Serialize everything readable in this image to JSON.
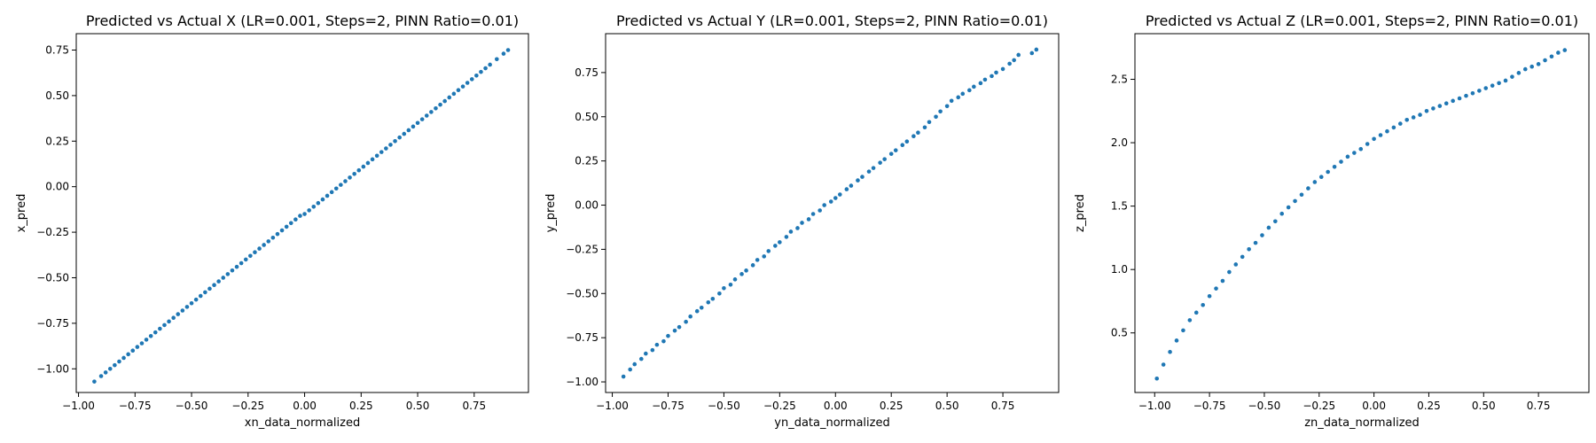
{
  "chart_data": [
    {
      "type": "scatter",
      "title": "Predicted vs Actual X (LR=0.001, Steps=2, PINN Ratio=0.01)",
      "xlabel": "xn_data_normalized",
      "ylabel": "x_pred",
      "xlim": [
        -1.01,
        0.99
      ],
      "ylim": [
        -1.13,
        0.84
      ],
      "xticks": [
        -1.0,
        -0.75,
        -0.5,
        -0.25,
        0.0,
        0.25,
        0.5,
        0.75
      ],
      "xtick_labels": [
        "−1.00",
        "−0.75",
        "−0.50",
        "−0.25",
        "0.00",
        "0.25",
        "0.50",
        "0.75"
      ],
      "yticks": [
        -1.0,
        -0.75,
        -0.5,
        -0.25,
        0.0,
        0.25,
        0.5,
        0.75
      ],
      "ytick_labels": [
        "−1.00",
        "−0.75",
        "−0.50",
        "−0.25",
        "0.00",
        "0.25",
        "0.50",
        "0.75"
      ],
      "color": "#1f77b4",
      "series": [
        {
          "x": [
            -0.93,
            -0.9,
            -0.88,
            -0.86,
            -0.84,
            -0.82,
            -0.8,
            -0.78,
            -0.76,
            -0.74,
            -0.72,
            -0.7,
            -0.68,
            -0.66,
            -0.64,
            -0.62,
            -0.6,
            -0.58,
            -0.56,
            -0.54,
            -0.52,
            -0.5,
            -0.48,
            -0.46,
            -0.44,
            -0.42,
            -0.4,
            -0.38,
            -0.36,
            -0.34,
            -0.32,
            -0.3,
            -0.28,
            -0.26,
            -0.24,
            -0.22,
            -0.2,
            -0.18,
            -0.16,
            -0.14,
            -0.12,
            -0.1,
            -0.08,
            -0.06,
            -0.04,
            -0.02,
            0.0,
            0.02,
            0.04,
            0.06,
            0.08,
            0.1,
            0.12,
            0.14,
            0.16,
            0.18,
            0.2,
            0.22,
            0.24,
            0.26,
            0.28,
            0.3,
            0.32,
            0.34,
            0.36,
            0.38,
            0.4,
            0.42,
            0.44,
            0.46,
            0.48,
            0.5,
            0.52,
            0.54,
            0.56,
            0.58,
            0.6,
            0.62,
            0.64,
            0.66,
            0.68,
            0.7,
            0.72,
            0.74,
            0.76,
            0.78,
            0.8,
            0.82,
            0.85,
            0.88,
            0.9
          ],
          "y": [
            -1.07,
            -1.04,
            -1.02,
            -1.0,
            -0.98,
            -0.96,
            -0.94,
            -0.92,
            -0.9,
            -0.88,
            -0.86,
            -0.84,
            -0.82,
            -0.8,
            -0.78,
            -0.76,
            -0.74,
            -0.72,
            -0.7,
            -0.68,
            -0.66,
            -0.64,
            -0.62,
            -0.6,
            -0.58,
            -0.56,
            -0.54,
            -0.52,
            -0.5,
            -0.48,
            -0.46,
            -0.44,
            -0.42,
            -0.4,
            -0.38,
            -0.36,
            -0.34,
            -0.32,
            -0.3,
            -0.28,
            -0.26,
            -0.24,
            -0.22,
            -0.2,
            -0.18,
            -0.16,
            -0.15,
            -0.13,
            -0.11,
            -0.09,
            -0.07,
            -0.05,
            -0.03,
            -0.01,
            0.01,
            0.03,
            0.05,
            0.07,
            0.09,
            0.11,
            0.13,
            0.15,
            0.17,
            0.19,
            0.21,
            0.23,
            0.25,
            0.27,
            0.29,
            0.31,
            0.33,
            0.35,
            0.37,
            0.39,
            0.41,
            0.43,
            0.45,
            0.47,
            0.49,
            0.51,
            0.53,
            0.55,
            0.57,
            0.59,
            0.61,
            0.63,
            0.65,
            0.67,
            0.7,
            0.73,
            0.75
          ]
        }
      ]
    },
    {
      "type": "scatter",
      "title": "Predicted vs Actual Y (LR=0.001, Steps=2, PINN Ratio=0.01)",
      "xlabel": "yn_data_normalized",
      "ylabel": "y_pred",
      "xlim": [
        -1.03,
        1.0
      ],
      "ylim": [
        -1.06,
        0.97
      ],
      "xticks": [
        -1.0,
        -0.75,
        -0.5,
        -0.25,
        0.0,
        0.25,
        0.5,
        0.75
      ],
      "xtick_labels": [
        "−1.00",
        "−0.75",
        "−0.50",
        "−0.25",
        "0.00",
        "0.25",
        "0.50",
        "0.75"
      ],
      "yticks": [
        -1.0,
        -0.75,
        -0.5,
        -0.25,
        0.0,
        0.25,
        0.5,
        0.75
      ],
      "ytick_labels": [
        "−1.00",
        "−0.75",
        "−0.50",
        "−0.25",
        "0.00",
        "0.25",
        "0.50",
        "0.75"
      ],
      "color": "#1f77b4",
      "series": [
        {
          "x": [
            -0.95,
            -0.92,
            -0.9,
            -0.87,
            -0.85,
            -0.82,
            -0.8,
            -0.77,
            -0.75,
            -0.72,
            -0.7,
            -0.67,
            -0.65,
            -0.62,
            -0.6,
            -0.57,
            -0.55,
            -0.52,
            -0.5,
            -0.47,
            -0.45,
            -0.42,
            -0.4,
            -0.37,
            -0.35,
            -0.32,
            -0.3,
            -0.27,
            -0.25,
            -0.22,
            -0.2,
            -0.17,
            -0.15,
            -0.12,
            -0.1,
            -0.07,
            -0.05,
            -0.02,
            0.0,
            0.02,
            0.05,
            0.07,
            0.1,
            0.12,
            0.15,
            0.17,
            0.2,
            0.22,
            0.25,
            0.27,
            0.3,
            0.32,
            0.35,
            0.37,
            0.4,
            0.42,
            0.45,
            0.47,
            0.5,
            0.52,
            0.55,
            0.57,
            0.6,
            0.62,
            0.65,
            0.67,
            0.7,
            0.72,
            0.75,
            0.78,
            0.8,
            0.82,
            0.88,
            0.9
          ],
          "y": [
            -0.97,
            -0.93,
            -0.9,
            -0.87,
            -0.84,
            -0.82,
            -0.79,
            -0.77,
            -0.74,
            -0.71,
            -0.69,
            -0.66,
            -0.63,
            -0.6,
            -0.58,
            -0.55,
            -0.53,
            -0.5,
            -0.47,
            -0.45,
            -0.42,
            -0.39,
            -0.37,
            -0.34,
            -0.31,
            -0.29,
            -0.26,
            -0.23,
            -0.21,
            -0.18,
            -0.15,
            -0.13,
            -0.1,
            -0.08,
            -0.05,
            -0.03,
            0.0,
            0.02,
            0.04,
            0.06,
            0.09,
            0.11,
            0.14,
            0.16,
            0.19,
            0.21,
            0.24,
            0.26,
            0.29,
            0.31,
            0.34,
            0.36,
            0.39,
            0.41,
            0.44,
            0.47,
            0.5,
            0.53,
            0.56,
            0.59,
            0.61,
            0.63,
            0.65,
            0.67,
            0.69,
            0.71,
            0.73,
            0.75,
            0.77,
            0.8,
            0.82,
            0.85,
            0.86,
            0.88
          ]
        }
      ]
    },
    {
      "type": "scatter",
      "title": "Predicted vs Actual Z (LR=0.001, Steps=2, PINN Ratio=0.01)",
      "xlabel": "zn_data_normalized",
      "ylabel": "z_pred",
      "xlim": [
        -1.09,
        0.98
      ],
      "ylim": [
        0.03,
        2.86
      ],
      "xticks": [
        -1.0,
        -0.75,
        -0.5,
        -0.25,
        0.0,
        0.25,
        0.5,
        0.75
      ],
      "xtick_labels": [
        "−1.00",
        "−0.75",
        "−0.50",
        "−0.25",
        "0.00",
        "0.25",
        "0.50",
        "0.75"
      ],
      "yticks": [
        0.5,
        1.0,
        1.5,
        2.0,
        2.5
      ],
      "ytick_labels": [
        "0.5",
        "1.0",
        "1.5",
        "2.0",
        "2.5"
      ],
      "color": "#1f77b4",
      "series": [
        {
          "x": [
            -0.99,
            -0.96,
            -0.93,
            -0.9,
            -0.87,
            -0.84,
            -0.81,
            -0.78,
            -0.75,
            -0.72,
            -0.69,
            -0.66,
            -0.63,
            -0.6,
            -0.57,
            -0.54,
            -0.51,
            -0.48,
            -0.45,
            -0.42,
            -0.39,
            -0.36,
            -0.33,
            -0.3,
            -0.27,
            -0.24,
            -0.21,
            -0.18,
            -0.15,
            -0.12,
            -0.09,
            -0.06,
            -0.03,
            0.0,
            0.03,
            0.06,
            0.09,
            0.12,
            0.15,
            0.18,
            0.21,
            0.24,
            0.27,
            0.3,
            0.33,
            0.36,
            0.39,
            0.42,
            0.45,
            0.48,
            0.51,
            0.54,
            0.57,
            0.6,
            0.63,
            0.66,
            0.69,
            0.72,
            0.75,
            0.78,
            0.81,
            0.84,
            0.87
          ],
          "y": [
            0.14,
            0.25,
            0.35,
            0.44,
            0.52,
            0.6,
            0.66,
            0.72,
            0.79,
            0.85,
            0.91,
            0.98,
            1.04,
            1.1,
            1.16,
            1.21,
            1.27,
            1.33,
            1.38,
            1.44,
            1.49,
            1.54,
            1.59,
            1.64,
            1.69,
            1.73,
            1.77,
            1.81,
            1.85,
            1.89,
            1.92,
            1.95,
            1.99,
            2.03,
            2.06,
            2.09,
            2.12,
            2.15,
            2.18,
            2.2,
            2.22,
            2.25,
            2.27,
            2.29,
            2.31,
            2.33,
            2.35,
            2.37,
            2.39,
            2.41,
            2.43,
            2.45,
            2.47,
            2.49,
            2.52,
            2.55,
            2.58,
            2.6,
            2.62,
            2.65,
            2.68,
            2.71,
            2.73
          ]
        }
      ]
    }
  ]
}
